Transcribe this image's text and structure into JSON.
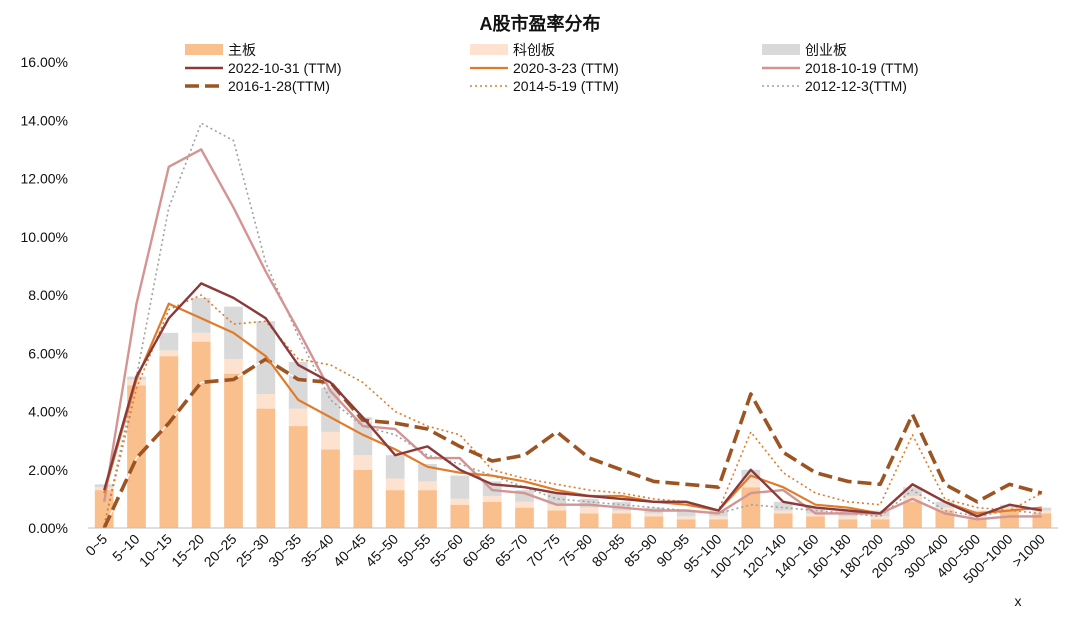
{
  "chart_data": {
    "type": "bar",
    "title": "A股市盈率分布",
    "xlabel": "x",
    "ylabel": "",
    "ylim": [
      0,
      16
    ],
    "y_ticks": [
      "0.00%",
      "2.00%",
      "4.00%",
      "6.00%",
      "8.00%",
      "10.00%",
      "12.00%",
      "14.00%",
      "16.00%"
    ],
    "categories": [
      "0~5",
      "5~10",
      "10~15",
      "15~20",
      "20~25",
      "25~30",
      "30~35",
      "35~40",
      "40~45",
      "45~50",
      "50~55",
      "55~60",
      "60~65",
      "65~70",
      "70~75",
      "75~80",
      "80~85",
      "85~90",
      "90~95",
      "95~100",
      "100~120",
      "120~140",
      "140~160",
      "160~180",
      "180~200",
      "200~300",
      "300~400",
      "400~500",
      "500~1000",
      ">1000"
    ],
    "stacked_bars": [
      {
        "name": "主板",
        "color": "#f9c08e",
        "values": [
          1.3,
          4.9,
          5.9,
          6.4,
          5.3,
          4.1,
          3.5,
          2.7,
          2.0,
          1.3,
          1.3,
          0.8,
          0.9,
          0.7,
          0.6,
          0.5,
          0.5,
          0.4,
          0.3,
          0.3,
          1.4,
          0.5,
          0.4,
          0.3,
          0.3,
          0.9,
          0.6,
          0.3,
          0.6,
          0.5
        ]
      },
      {
        "name": "科创板",
        "color": "#fde3cf",
        "values": [
          0.1,
          0.2,
          0.2,
          0.3,
          0.5,
          0.5,
          0.6,
          0.6,
          0.5,
          0.4,
          0.3,
          0.2,
          0.2,
          0.2,
          0.2,
          0.2,
          0.1,
          0.1,
          0.1,
          0.1,
          0.3,
          0.1,
          0.1,
          0.1,
          0.1,
          0.2,
          0.1,
          0.1,
          0.1,
          0.1
        ]
      },
      {
        "name": "创业板",
        "color": "#d9d9d9",
        "values": [
          0.1,
          0.1,
          0.6,
          1.2,
          1.8,
          2.5,
          1.6,
          1.5,
          1.3,
          0.8,
          0.6,
          0.8,
          0.5,
          0.4,
          0.4,
          0.3,
          0.3,
          0.2,
          0.2,
          0.2,
          0.3,
          0.3,
          0.2,
          0.2,
          0.2,
          0.3,
          0.2,
          0.2,
          0.1,
          0.1
        ]
      }
    ],
    "series": [
      {
        "name": "2022-10-31 (TTM)",
        "color": "#8b3a3a",
        "style": "solid",
        "width": 2.4,
        "values": [
          1.3,
          5.2,
          7.2,
          8.4,
          7.9,
          7.2,
          5.6,
          5.0,
          3.8,
          2.5,
          2.8,
          2.0,
          1.5,
          1.4,
          1.2,
          1.1,
          1.0,
          0.9,
          0.9,
          0.6,
          2.0,
          0.9,
          0.7,
          0.6,
          0.5,
          1.5,
          0.9,
          0.4,
          0.8,
          0.6
        ]
      },
      {
        "name": "2020-3-23 (TTM)",
        "color": "#e07b2a",
        "style": "solid",
        "width": 2.2,
        "values": [
          1.2,
          5.1,
          7.7,
          7.2,
          6.7,
          5.9,
          4.4,
          3.8,
          3.2,
          2.7,
          2.1,
          1.9,
          1.8,
          1.6,
          1.3,
          1.1,
          1.1,
          0.9,
          0.8,
          0.6,
          1.8,
          1.4,
          0.8,
          0.7,
          0.5,
          1.5,
          0.9,
          0.5,
          0.6,
          0.7
        ]
      },
      {
        "name": "2018-10-19 (TTM)",
        "color": "#d49494",
        "style": "solid",
        "width": 2.4,
        "values": [
          0.9,
          7.7,
          12.4,
          13.0,
          11.0,
          8.8,
          6.8,
          4.7,
          3.5,
          3.4,
          2.4,
          2.4,
          1.3,
          1.2,
          0.8,
          0.8,
          0.7,
          0.6,
          0.6,
          0.5,
          1.2,
          1.3,
          0.5,
          0.5,
          0.5,
          1.0,
          0.5,
          0.3,
          0.4,
          0.4
        ]
      },
      {
        "name": "2016-1-28(TTM)",
        "color": "#9c5422",
        "style": "bigdash",
        "width": 3.6,
        "values": [
          0.0,
          2.4,
          3.6,
          5.0,
          5.1,
          5.8,
          5.1,
          5.0,
          3.7,
          3.6,
          3.4,
          2.8,
          2.3,
          2.5,
          3.3,
          2.4,
          2.0,
          1.6,
          1.5,
          1.4,
          4.6,
          2.6,
          1.9,
          1.6,
          1.5,
          3.9,
          1.5,
          0.9,
          1.5,
          1.2
        ]
      },
      {
        "name": "2014-5-19 (TTM)",
        "color": "#e07b2a",
        "style": "dot",
        "width": 1.6,
        "values": [
          0.1,
          4.8,
          7.5,
          8.0,
          7.0,
          7.1,
          5.8,
          5.6,
          5.0,
          4.0,
          3.5,
          3.2,
          2.0,
          1.7,
          1.5,
          1.3,
          1.2,
          1.0,
          0.9,
          0.6,
          3.3,
          1.9,
          1.2,
          0.9,
          0.8,
          3.2,
          1.0,
          0.7,
          0.6,
          1.2
        ]
      },
      {
        "name": "2012-12-3(TTM)",
        "color": "#a0a0a0",
        "style": "dot",
        "width": 1.6,
        "values": [
          0.1,
          5.2,
          11.0,
          13.9,
          13.3,
          9.1,
          6.6,
          4.4,
          3.5,
          3.2,
          2.5,
          2.2,
          1.8,
          1.4,
          1.0,
          0.9,
          0.8,
          0.7,
          0.6,
          0.5,
          0.8,
          0.7,
          0.6,
          0.5,
          0.4,
          1.3,
          0.6,
          0.4,
          0.6,
          0.5
        ]
      }
    ],
    "legend_position": "top",
    "grid": false
  }
}
